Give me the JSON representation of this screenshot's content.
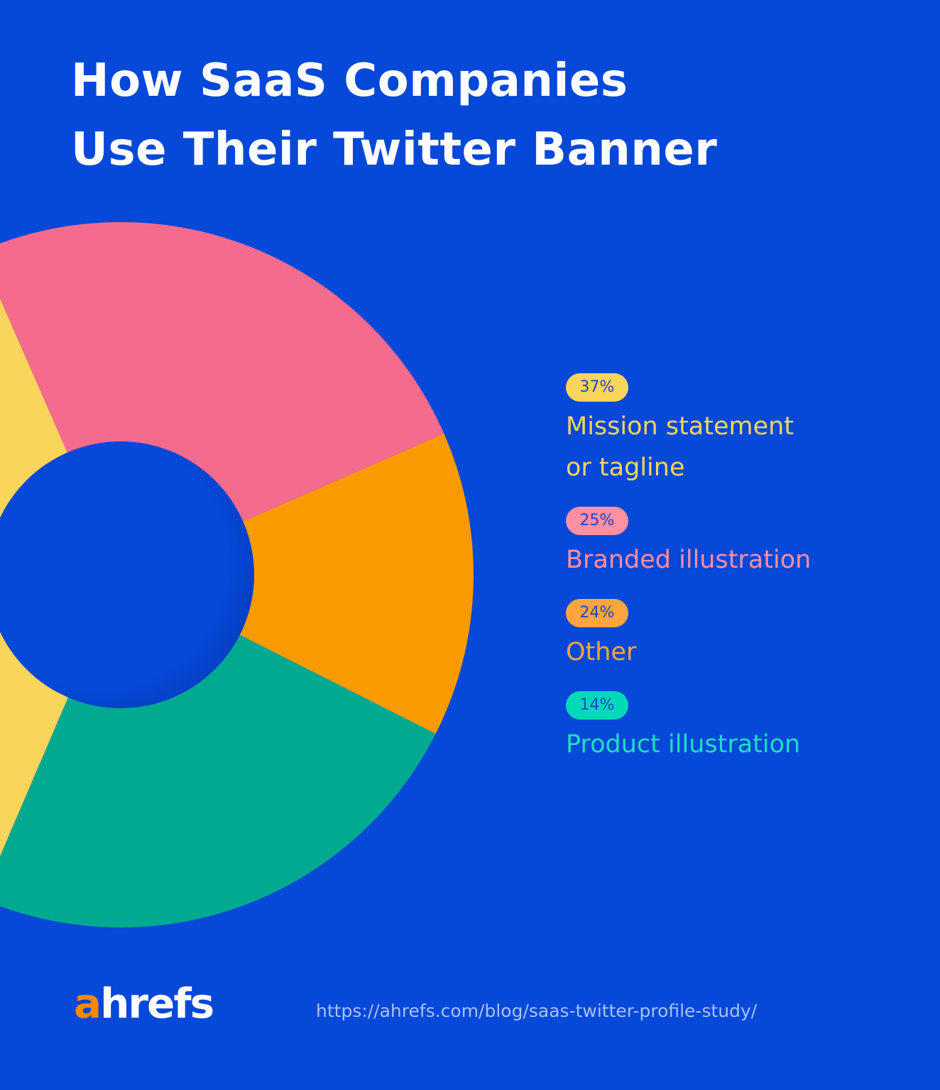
{
  "title": {
    "line1": "How SaaS Companies",
    "line2": "Use Their Twitter Banner"
  },
  "chart_data": {
    "type": "pie",
    "subtype": "donut",
    "legend_placement": "right",
    "legend": [
      {
        "percent_label": "37%",
        "label": "Mission statement or tagline",
        "label_line1": "Mission statement",
        "label_line2": "or tagline",
        "value": 37,
        "text_color": "#F9D55A",
        "badge_color": "#F9D55A"
      },
      {
        "percent_label": "25%",
        "label": "Branded illustration",
        "value": 25,
        "text_color": "#FF8FA3",
        "badge_color": "#FF8FA3"
      },
      {
        "percent_label": "24%",
        "label": "Other",
        "value": 24,
        "text_color": "#FFA53D",
        "badge_color": "#FFA53D"
      },
      {
        "percent_label": "14%",
        "label": "Product illustration",
        "value": 14,
        "text_color": "#1DE0C0",
        "badge_color": "#00D9B8"
      }
    ],
    "slices": [
      {
        "value": 25,
        "color": "#F56B8E"
      },
      {
        "value": 14,
        "color": "#F89A00"
      },
      {
        "value": 24,
        "color": "#02A991"
      },
      {
        "value": 37,
        "color": "#F9D55A"
      }
    ]
  },
  "colors": {
    "background": "#0648D8",
    "logo_accent": "#FF8800",
    "logo_main": "#FFFFFF"
  },
  "footer": {
    "logo_a": "a",
    "logo_rest": "hrefs",
    "url": "https://ahrefs.com/blog/saas-twitter-profile-study/"
  }
}
